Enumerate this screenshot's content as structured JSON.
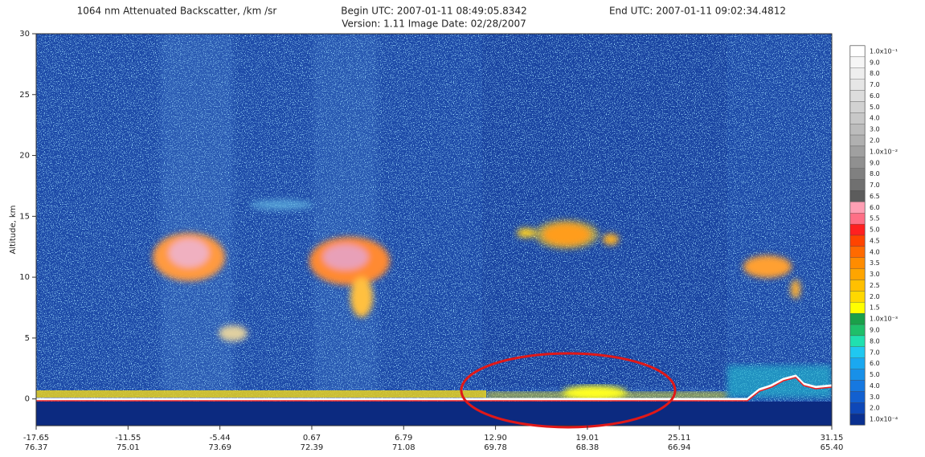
{
  "chart_data": {
    "type": "heatmap",
    "title": "1064 nm Attenuated Backscatter, /km /sr",
    "begin": "Begin UTC: 2007-01-11  08:49:05.8342",
    "end": "End UTC: 2007-01-11  09:02:34.4812",
    "subtitle": "Version: 1.11  Image Date: 02/28/2007",
    "y_label": "Altitude, km",
    "ylim": [
      -2.2,
      30
    ],
    "yticks": [
      0,
      5,
      10,
      15,
      20,
      25,
      30
    ],
    "xticks": [
      {
        "lat": "-17.65",
        "lon": "76.37"
      },
      {
        "lat": "-11.55",
        "lon": "75.01"
      },
      {
        "lat": "-5.44",
        "lon": "73.69"
      },
      {
        "lat": "0.67",
        "lon": "72.39"
      },
      {
        "lat": "6.79",
        "lon": "71.08"
      },
      {
        "lat": "12.90",
        "lon": "69.78"
      },
      {
        "lat": "19.01",
        "lon": "68.38"
      },
      {
        "lat": "25.11",
        "lon": "66.94"
      },
      {
        "lat": "31.15",
        "lon": "65.40"
      }
    ],
    "colorbar": [
      {
        "value": 0.1,
        "label": "1.0x10⁻¹",
        "color": "#ffffff"
      },
      {
        "value": 0.09,
        "label": "9.0",
        "color": "#f6f6f6"
      },
      {
        "value": 0.08,
        "label": "8.0",
        "color": "#eeeeee"
      },
      {
        "value": 0.07,
        "label": "7.0",
        "color": "#e6e6e6"
      },
      {
        "value": 0.06,
        "label": "6.0",
        "color": "#dddddd"
      },
      {
        "value": 0.05,
        "label": "5.0",
        "color": "#d2d2d2"
      },
      {
        "value": 0.04,
        "label": "4.0",
        "color": "#c8c8c8"
      },
      {
        "value": 0.03,
        "label": "3.0",
        "color": "#bcbcbc"
      },
      {
        "value": 0.02,
        "label": "2.0",
        "color": "#b0b0b0"
      },
      {
        "value": 0.01,
        "label": "1.0x10⁻²",
        "color": "#a0a0a0"
      },
      {
        "value": 0.009,
        "label": "9.0",
        "color": "#909090"
      },
      {
        "value": 0.008,
        "label": "8.0",
        "color": "#808080"
      },
      {
        "value": 0.007,
        "label": "7.0",
        "color": "#707070"
      },
      {
        "value": 0.0065,
        "label": "6.5",
        "color": "#5c5c5c"
      },
      {
        "value": 0.006,
        "label": "6.0",
        "color": "#ff9fb4"
      },
      {
        "value": 0.0055,
        "label": "5.5",
        "color": "#ff6f86"
      },
      {
        "value": 0.005,
        "label": "5.0",
        "color": "#ff2020"
      },
      {
        "value": 0.0045,
        "label": "4.5",
        "color": "#ff4400"
      },
      {
        "value": 0.004,
        "label": "4.0",
        "color": "#ff6a00"
      },
      {
        "value": 0.0035,
        "label": "3.5",
        "color": "#ff8c00"
      },
      {
        "value": 0.003,
        "label": "3.0",
        "color": "#ffa500"
      },
      {
        "value": 0.0025,
        "label": "2.5",
        "color": "#ffc000"
      },
      {
        "value": 0.002,
        "label": "2.0",
        "color": "#ffd800"
      },
      {
        "value": 0.0015,
        "label": "1.5",
        "color": "#ffff00"
      },
      {
        "value": 0.001,
        "label": "1.0x10⁻³",
        "color": "#1aa04a"
      },
      {
        "value": 0.0009,
        "label": "9.0",
        "color": "#1fbf6a"
      },
      {
        "value": 0.0008,
        "label": "8.0",
        "color": "#20e0b0"
      },
      {
        "value": 0.0007,
        "label": "7.0",
        "color": "#20c8f0"
      },
      {
        "value": 0.0006,
        "label": "6.0",
        "color": "#1aa8f0"
      },
      {
        "value": 0.0005,
        "label": "5.0",
        "color": "#1890e8"
      },
      {
        "value": 0.0004,
        "label": "4.0",
        "color": "#1678e0"
      },
      {
        "value": 0.0003,
        "label": "3.0",
        "color": "#1260d0"
      },
      {
        "value": 0.0002,
        "label": "2.0",
        "color": "#0e48b8"
      },
      {
        "value": 0.0001,
        "label": "1.0x10⁻⁴",
        "color": "#0a3090"
      }
    ]
  }
}
